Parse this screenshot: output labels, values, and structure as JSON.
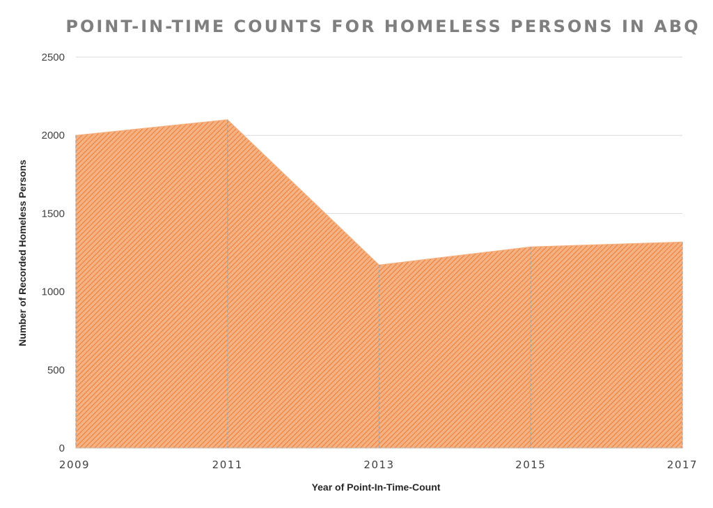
{
  "chart_data": {
    "type": "area",
    "title": "POINT-IN-TIME COUNTS FOR HOMELESS PERSONS IN ABQ",
    "xlabel": "Year of Point-In-Time-Count",
    "ylabel": "Number of Recorded Homeless Persons",
    "categories": [
      "2009",
      "2011",
      "2013",
      "2015",
      "2017"
    ],
    "values": [
      2000,
      2100,
      1171,
      1287,
      1318
    ],
    "ylim": [
      0,
      2500
    ],
    "yticks": [
      "0",
      "500",
      "1000",
      "1500",
      "2000",
      "2500"
    ],
    "grid": "horizontal",
    "fill_color": "#f4b183",
    "hatch_color": "#ed7d31",
    "drop_line_color": "#a5a5a5",
    "grid_color": "#d9d9d9",
    "axis_color": "#bfbfbf"
  }
}
